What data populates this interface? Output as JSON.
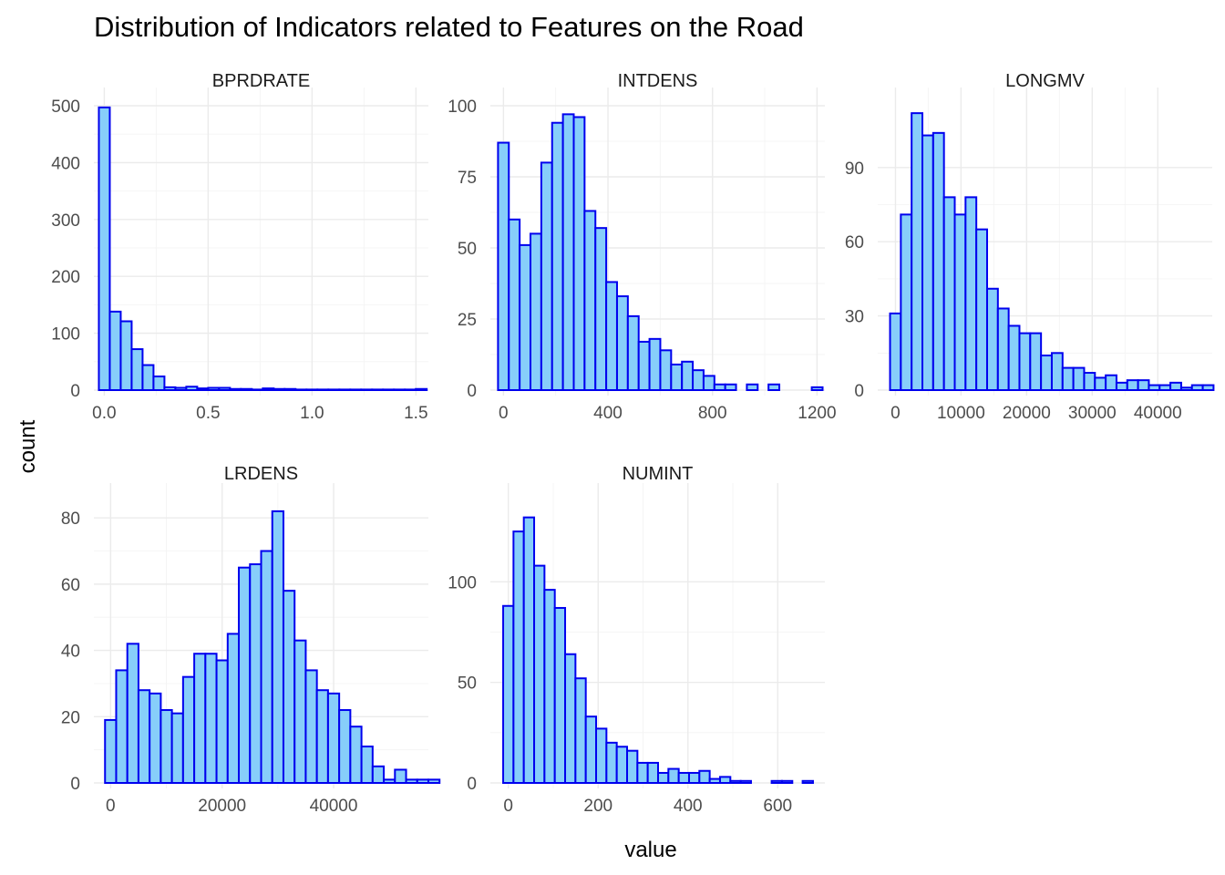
{
  "chart_data": {
    "type": "bar",
    "title": "Distribution of Indicators related to Features on the Road",
    "xlabel": "value",
    "ylabel": "count",
    "grid": true,
    "facets": [
      {
        "name": "BPRDRATE",
        "x_start": -0.026,
        "binwidth": 0.0526,
        "counts": [
          497,
          138,
          121,
          72,
          44,
          24,
          5,
          4,
          6,
          3,
          4,
          4,
          2,
          2,
          1,
          3,
          2,
          2,
          1,
          1,
          1,
          1,
          1,
          1,
          1,
          1,
          1,
          1,
          1,
          2
        ],
        "xlim": [
          -0.05,
          1.56
        ],
        "ylim": [
          0,
          500
        ],
        "xticks": [
          0,
          0.5,
          1,
          1.5
        ],
        "xtick_labels": [
          "0.0",
          "0.5",
          "1.0",
          "1.5"
        ],
        "yticks": [
          0,
          100,
          200,
          300,
          400,
          500
        ],
        "ytick_labels": [
          "0",
          "100",
          "200",
          "300",
          "400",
          "500"
        ]
      },
      {
        "name": "INTDENS",
        "x_start": -20.7,
        "binwidth": 41.4,
        "counts": [
          87,
          60,
          51,
          55,
          80,
          94,
          97,
          96,
          63,
          57,
          38,
          33,
          26,
          17,
          18,
          14,
          9,
          10,
          7,
          5,
          2,
          2,
          0,
          2,
          0,
          2,
          0,
          0,
          0,
          1
        ],
        "xlim": [
          -50,
          1230
        ],
        "ylim": [
          0,
          100
        ],
        "xticks": [
          0,
          400,
          800,
          1200
        ],
        "xtick_labels": [
          "0",
          "400",
          "800",
          "1200"
        ],
        "yticks": [
          0,
          25,
          50,
          75,
          100
        ],
        "ytick_labels": [
          "0",
          "25",
          "50",
          "75",
          "100"
        ]
      },
      {
        "name": "LONGMV",
        "x_start": -822,
        "binwidth": 1644,
        "counts": [
          31,
          71,
          112,
          103,
          104,
          78,
          71,
          78,
          65,
          41,
          33,
          26,
          23,
          23,
          14,
          15,
          9,
          9,
          7,
          5,
          6,
          3,
          4,
          4,
          2,
          2,
          3,
          1,
          2,
          2
        ],
        "xlim": [
          -2700,
          48300
        ],
        "ylim": [
          0,
          115
        ],
        "xticks": [
          0,
          10000,
          20000,
          30000,
          40000
        ],
        "xtick_labels": [
          "0",
          "10000",
          "20000",
          "30000",
          "40000"
        ],
        "yticks": [
          0,
          30,
          60,
          90
        ],
        "ytick_labels": [
          "0",
          "30",
          "60",
          "90"
        ]
      },
      {
        "name": "LRDENS",
        "x_start": -1000,
        "binwidth": 2000,
        "counts": [
          19,
          34,
          42,
          28,
          27,
          22,
          21,
          32,
          39,
          39,
          37,
          45,
          65,
          66,
          70,
          82,
          58,
          43,
          34,
          28,
          27,
          22,
          17,
          11,
          5,
          1,
          4,
          1,
          1,
          1
        ],
        "xlim": [
          -3000,
          57000
        ],
        "ylim": [
          0,
          85
        ],
        "xticks": [
          0,
          20000,
          40000
        ],
        "xtick_labels": [
          "0",
          "20000",
          "40000"
        ],
        "yticks": [
          0,
          20,
          40,
          60,
          80
        ],
        "ytick_labels": [
          "0",
          "20",
          "40",
          "60",
          "80"
        ]
      },
      {
        "name": "NUMINT",
        "x_start": -11.5,
        "binwidth": 23,
        "counts": [
          88,
          125,
          132,
          108,
          96,
          87,
          64,
          52,
          33,
          27,
          20,
          18,
          16,
          10,
          10,
          5,
          7,
          5,
          5,
          6,
          2,
          3,
          1,
          1,
          0,
          0,
          1,
          1,
          0,
          1
        ],
        "xlim": [
          -40,
          705
        ],
        "ylim": [
          0,
          140
        ],
        "xticks": [
          0,
          200,
          400,
          600
        ],
        "xtick_labels": [
          "0",
          "200",
          "400",
          "600"
        ],
        "yticks": [
          0,
          50,
          100
        ],
        "ytick_labels": [
          "0",
          "50",
          "100"
        ]
      }
    ]
  }
}
